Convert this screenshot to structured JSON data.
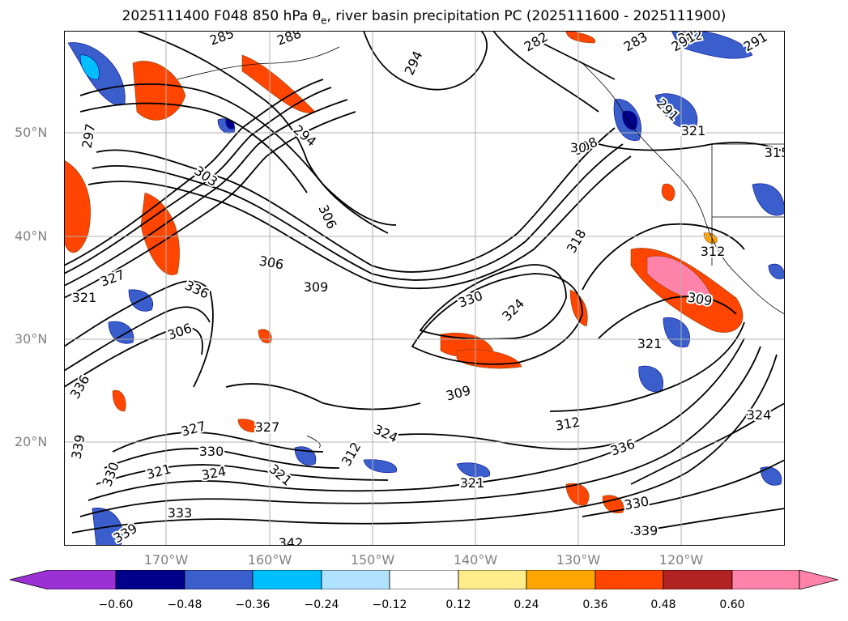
{
  "title": {
    "prefix": "2025111400 F048 850 hPa θ",
    "subscript": "e",
    "suffix": ", river basin precipitation PC (2025111600 - 2025111900)"
  },
  "map": {
    "type": "contour map",
    "contour_variable": "850 hPa θe",
    "fill_variable": "river basin precipitation PC",
    "lat_labels": [
      "50°N",
      "40°N",
      "30°N",
      "20°N"
    ],
    "lon_labels": [
      "170°W",
      "160°W",
      "150°W",
      "140°W",
      "130°W",
      "120°W"
    ],
    "contour_labels": [
      "285",
      "288",
      "282",
      "283",
      "282",
      "291",
      "291",
      "294",
      "297",
      "294",
      "303",
      "306",
      "308",
      "30",
      "291",
      "321",
      "315",
      "312",
      "318",
      "306",
      "309",
      "330",
      "324",
      "336",
      "327",
      "306",
      "309",
      "321",
      "309",
      "324",
      "327",
      "330",
      "324",
      "321",
      "321",
      "312",
      "312",
      "336",
      "330",
      "327",
      "324",
      "321",
      "333",
      "339",
      "342",
      "339",
      "336",
      "339",
      "330",
      "321"
    ],
    "grid": true
  },
  "colorbar": {
    "ticks": [
      "−0.60",
      "−0.48",
      "−0.36",
      "−0.24",
      "−0.12",
      "0.12",
      "0.24",
      "0.36",
      "0.48",
      "0.60"
    ],
    "colors": [
      "#9b30d4",
      "#00008b",
      "#3a5fcd",
      "#00bfff",
      "#b0e2ff",
      "#ffffff",
      "#ffec8b",
      "#ffa500",
      "#ff4500",
      "#b22222",
      "#ff82ab",
      "#ff82ab"
    ]
  }
}
